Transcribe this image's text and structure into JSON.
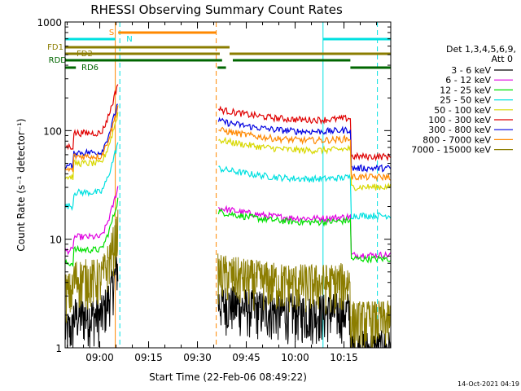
{
  "chart_data": {
    "type": "line",
    "title": "RHESSI Observing Summary Count Rates",
    "xlabel": "Start Time (22-Feb-06 08:49:22)",
    "ylabel": "Count Rate (s⁻¹ detector⁻¹)",
    "y_scale": "log",
    "ylim": [
      1,
      1000
    ],
    "xlim_minutes": [
      0,
      100
    ],
    "x_tick_labels": [
      "09:00",
      "09:15",
      "09:30",
      "09:45",
      "10:00",
      "10:15"
    ],
    "x_tick_minutes": [
      10.633,
      25.633,
      40.633,
      55.633,
      70.633,
      85.633
    ],
    "y_tick_labels": [
      "1",
      "10",
      "100",
      "1000"
    ],
    "y_tick_values": [
      1,
      10,
      100,
      1000
    ],
    "legend": {
      "header_line1": "Det 1,3,4,5,6,9,",
      "header_line2": "Att 0",
      "placement": "right"
    },
    "series": [
      {
        "name": "3 - 6 keV",
        "color": "#000000",
        "day1": 1.8,
        "day2": 1.6,
        "noisy": true
      },
      {
        "name": "6 - 12 keV",
        "color": "#e000e0",
        "day1": 10.5,
        "day2": 13,
        "noisy": false
      },
      {
        "name": "12 - 25 keV",
        "color": "#00e000",
        "day1": 8,
        "day2": 12,
        "noisy": false
      },
      {
        "name": "25 - 50 keV",
        "color": "#00e0e0",
        "day1": 27,
        "day2": 30,
        "noisy": false
      },
      {
        "name": "50 - 100 keV",
        "color": "#d8d800",
        "day1": 50,
        "day2": 55,
        "noisy": false
      },
      {
        "name": "100 - 300 keV",
        "color": "#e00000",
        "day1": 95,
        "day2": 105,
        "noisy": false
      },
      {
        "name": "300 - 800 keV",
        "color": "#0000e0",
        "day1": 63,
        "day2": 82,
        "noisy": false
      },
      {
        "name": "800 - 7000 keV",
        "color": "#ff8800",
        "day1": 58,
        "day2": 68,
        "noisy": false
      },
      {
        "name": "7000 - 15000 keV",
        "color": "#8b7d00",
        "day1": 4,
        "day2": 3,
        "noisy": true
      }
    ],
    "data_gap_minutes": [
      16.3,
      46.9
    ],
    "vlines": [
      {
        "minute": 15.4,
        "color": "#ff8800",
        "style": "solid"
      },
      {
        "minute": 16.8,
        "color": "#00e0e0",
        "style": "dashed"
      },
      {
        "minute": 46.4,
        "color": "#ff8800",
        "style": "dashed"
      },
      {
        "minute": 79.2,
        "color": "#00e0e0",
        "style": "solid"
      },
      {
        "minute": 95.9,
        "color": "#00e0e0",
        "style": "dashed"
      }
    ],
    "flag_bars": [
      {
        "label": "S",
        "color": "#ff8800",
        "segments": [
          [
            16.3,
            46.4
          ]
        ]
      },
      {
        "label": "N",
        "color": "#00e0e0",
        "segments": [
          [
            0,
            15.4
          ],
          [
            79.2,
            100
          ]
        ]
      },
      {
        "label": "FD1",
        "color": "#8b7d00",
        "segments": [
          [
            0,
            50.5
          ]
        ]
      },
      {
        "label": "FD2",
        "color": "#8b7d00",
        "segments": [
          [
            0,
            47.5
          ],
          [
            50.5,
            100
          ]
        ]
      },
      {
        "label": "RDD",
        "color": "#006600",
        "segments": [
          [
            0,
            48.2
          ],
          [
            51.5,
            87.6
          ]
        ]
      },
      {
        "label": "RD6",
        "color": "#006600",
        "segments": [
          [
            0,
            3.3
          ],
          [
            46.8,
            49.4
          ],
          [
            87.6,
            100
          ]
        ]
      }
    ],
    "timestamp": "14-Oct-2021 04:19"
  }
}
